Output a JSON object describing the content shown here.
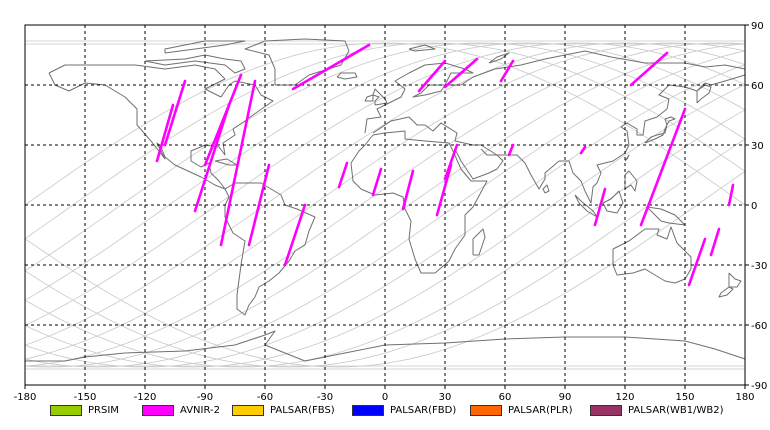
{
  "map": {
    "x_ticks": [
      "-180",
      "-150",
      "-120",
      "-90",
      "-60",
      "-30",
      "0",
      "30",
      "60",
      "90",
      "120",
      "150",
      "180"
    ],
    "y_ticks": [
      "90",
      "60",
      "30",
      "0",
      "-30",
      "-60",
      "-90"
    ],
    "lon_range": [
      -180,
      180
    ],
    "lat_range": [
      -90,
      90
    ],
    "grid": true,
    "colors": {
      "background": "#ffffff",
      "coastline": "#707070",
      "orbit": "#c8c8c8",
      "grid": "#000000"
    }
  },
  "legend": [
    {
      "label": "PRSIM",
      "color": "#99cc00"
    },
    {
      "label": "AVNIR-2",
      "color": "#ff00ff"
    },
    {
      "label": "PALSAR(FBS)",
      "color": "#ffcc00"
    },
    {
      "label": "PALSAR(FBD)",
      "color": "#0000ff"
    },
    {
      "label": "PALSAR(PLR)",
      "color": "#ff6600"
    },
    {
      "label": "PALSAR(WB1/WB2)",
      "color": "#993366"
    }
  ],
  "chart_data": {
    "type": "map",
    "series": [
      {
        "name": "AVNIR-2",
        "color": "#ff00ff",
        "segments": [
          [
            [
              -114,
              22
            ],
            [
              -106,
              50
            ]
          ],
          [
            [
              -110,
              30
            ],
            [
              -100,
              62
            ]
          ],
          [
            [
              -95,
              -3
            ],
            [
              -78,
              50
            ]
          ],
          [
            [
              -90,
              20
            ],
            [
              -72,
              65
            ]
          ],
          [
            [
              -82,
              -20
            ],
            [
              -65,
              62
            ]
          ],
          [
            [
              -68,
              -20
            ],
            [
              -58,
              20
            ]
          ],
          [
            [
              -50,
              -30
            ],
            [
              -40,
              0
            ]
          ],
          [
            [
              -46,
              58
            ],
            [
              -8,
              80
            ]
          ],
          [
            [
              -23,
              9
            ],
            [
              -19,
              21
            ]
          ],
          [
            [
              17,
              57
            ],
            [
              30,
              72
            ]
          ],
          [
            [
              30,
              59
            ],
            [
              46,
              73
            ]
          ],
          [
            [
              -6,
              5
            ],
            [
              -2,
              18
            ]
          ],
          [
            [
              9,
              -2
            ],
            [
              14,
              17
            ]
          ],
          [
            [
              26,
              -5
            ],
            [
              33,
              20
            ]
          ],
          [
            [
              30,
              13
            ],
            [
              36,
              30
            ]
          ],
          [
            [
              58,
              62
            ],
            [
              64,
              72
            ]
          ],
          [
            [
              62,
              25
            ],
            [
              64,
              30
            ]
          ],
          [
            [
              98,
              26
            ],
            [
              100,
              29
            ]
          ],
          [
            [
              105,
              -10
            ],
            [
              110,
              8
            ]
          ],
          [
            [
              123,
              60
            ],
            [
              141,
              76
            ]
          ],
          [
            [
              128,
              -10
            ],
            [
              150,
              48
            ]
          ],
          [
            [
              152,
              -40
            ],
            [
              160,
              -17
            ]
          ],
          [
            [
              163,
              -25
            ],
            [
              167,
              -12
            ]
          ],
          [
            [
              172,
              0
            ],
            [
              174,
              10
            ]
          ]
        ]
      }
    ]
  }
}
